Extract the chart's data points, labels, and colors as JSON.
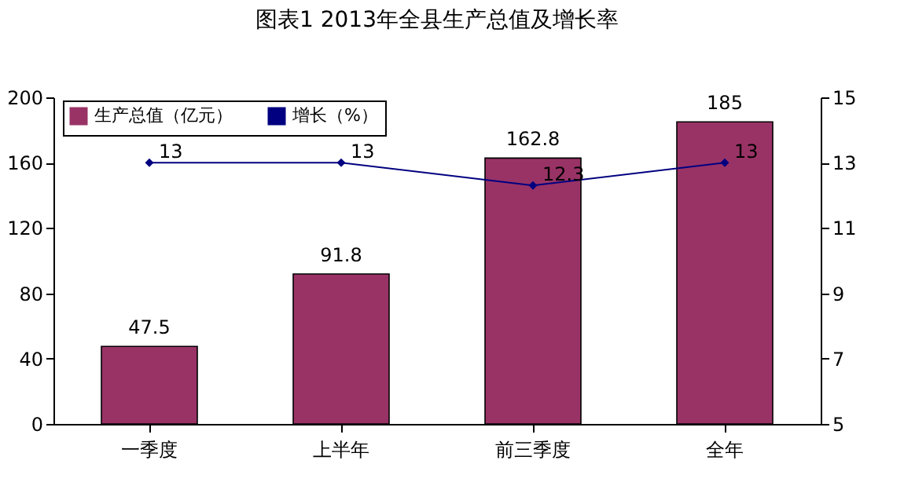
{
  "chart_data": {
    "type": "bar",
    "title": "图表1  2013年全县生产总值及增长率",
    "categories": [
      "一季度",
      "上半年",
      "前三季度",
      "全年"
    ],
    "series": [
      {
        "name": "生产总值（亿元）",
        "color": "#993366",
        "values": [
          47.5,
          91.8,
          162.8,
          185
        ]
      },
      {
        "name": "增长（%）",
        "type": "line",
        "axis": "y2",
        "color": "#000080",
        "marker": "diamond",
        "values": [
          13,
          13,
          12.3,
          13
        ]
      }
    ],
    "ylim": [
      0,
      200
    ],
    "yticks": [
      0,
      40,
      80,
      120,
      160,
      200
    ],
    "y2lim": [
      5,
      15
    ],
    "y2ticks": [
      5,
      7,
      9,
      11,
      13,
      15
    ],
    "data_labels": true,
    "legend": "top left",
    "grid": false
  }
}
